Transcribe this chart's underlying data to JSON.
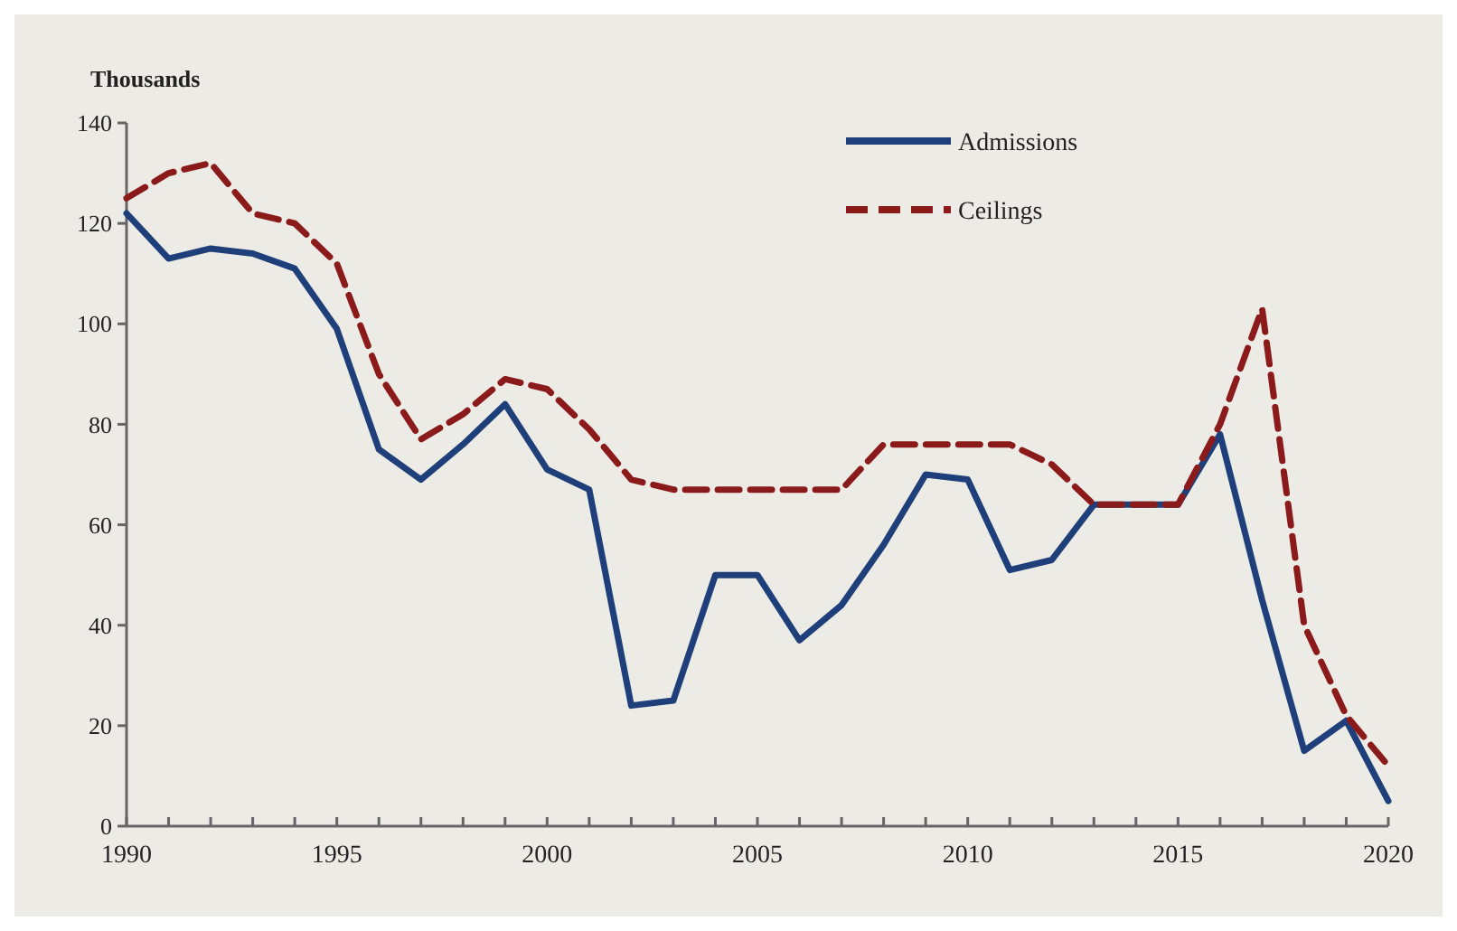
{
  "chart_data": {
    "type": "line",
    "ylabel": "Thousands",
    "x": [
      1990,
      1991,
      1992,
      1993,
      1994,
      1995,
      1996,
      1997,
      1998,
      1999,
      2000,
      2001,
      2002,
      2003,
      2004,
      2005,
      2006,
      2007,
      2008,
      2009,
      2010,
      2011,
      2012,
      2013,
      2014,
      2015,
      2016,
      2017,
      2018,
      2019,
      2020
    ],
    "series": [
      {
        "name": "Admissions",
        "color": "#1f3f7a",
        "line_style": "solid",
        "values": [
          122,
          113,
          115,
          114,
          111,
          99,
          75,
          69,
          76,
          84,
          71,
          67,
          24,
          25,
          50,
          50,
          37,
          44,
          56,
          70,
          69,
          51,
          53,
          64,
          64,
          64,
          78,
          45,
          15,
          21,
          5
        ]
      },
      {
        "name": "Ceilings",
        "color": "#8b1a1a",
        "line_style": "dashed",
        "values": [
          125,
          130,
          132,
          122,
          120,
          112,
          90,
          77,
          82,
          89,
          87,
          79,
          69,
          67,
          67,
          67,
          67,
          67,
          76,
          76,
          76,
          76,
          72,
          64,
          64,
          64,
          80,
          103,
          40,
          22,
          12
        ]
      }
    ],
    "xlim": [
      1990,
      2020
    ],
    "xticks": [
      1990,
      {
        "value": 1991,
        "label": null
      },
      {
        "value": 1992,
        "label": null
      },
      {
        "value": 1993,
        "label": null
      },
      {
        "value": 1994,
        "label": null
      },
      1995,
      {
        "value": 1996,
        "label": null
      },
      {
        "value": 1997,
        "label": null
      },
      {
        "value": 1998,
        "label": null
      },
      {
        "value": 1999,
        "label": null
      },
      2000,
      {
        "value": 2001,
        "label": null
      },
      {
        "value": 2002,
        "label": null
      },
      {
        "value": 2003,
        "label": null
      },
      {
        "value": 2004,
        "label": null
      },
      2005,
      {
        "value": 2006,
        "label": null
      },
      {
        "value": 2007,
        "label": null
      },
      {
        "value": 2008,
        "label": null
      },
      {
        "value": 2009,
        "label": null
      },
      2010,
      {
        "value": 2011,
        "label": null
      },
      {
        "value": 2012,
        "label": null
      },
      {
        "value": 2013,
        "label": null
      },
      {
        "value": 2014,
        "label": null
      },
      2015,
      {
        "value": 2016,
        "label": null
      },
      {
        "value": 2017,
        "label": null
      },
      {
        "value": 2018,
        "label": null
      },
      {
        "value": 2019,
        "label": null
      },
      2020
    ],
    "ylim": [
      0,
      140
    ],
    "yticks": [
      0,
      20,
      40,
      60,
      80,
      100,
      120,
      140
    ],
    "grid": false,
    "legend": "top right",
    "marker": "none"
  }
}
